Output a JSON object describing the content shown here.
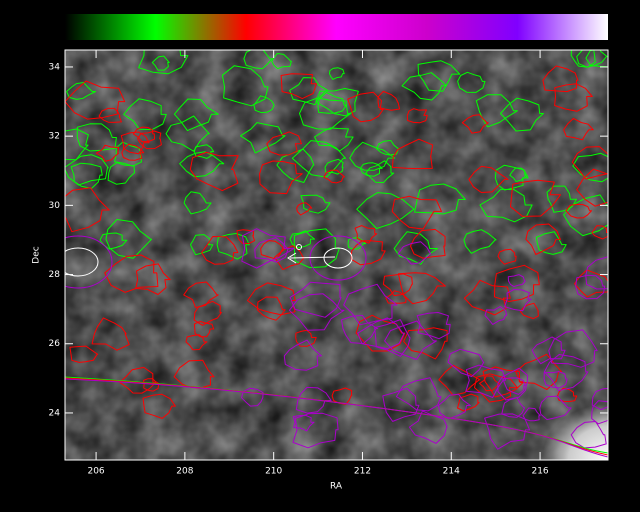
{
  "chart_data": {
    "type": "contour-map",
    "x_label": "RA",
    "y_label": "Dec",
    "xlim": [
      205.3,
      217.53
    ],
    "ylim": [
      22.64,
      34.49
    ],
    "xticks": [
      206,
      208,
      210,
      212,
      214,
      216
    ],
    "yticks": [
      24,
      26,
      28,
      30,
      32,
      34
    ],
    "colorbar_colors": [
      "#000000",
      "#00ff00",
      "#ff0000",
      "#ff00ff",
      "#cc00cc",
      "#8000ff",
      "#ffffff"
    ],
    "contour_colors": [
      "#00ff00",
      "#ff0000",
      "#aa00cc",
      "#ffffff"
    ]
  }
}
